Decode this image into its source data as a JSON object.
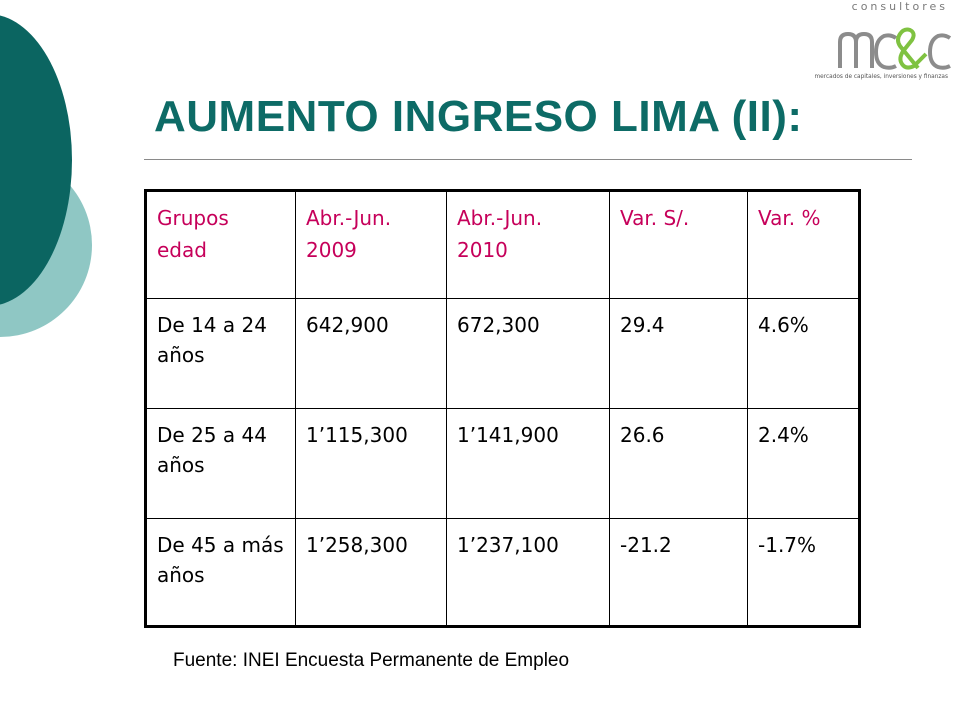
{
  "logo": {
    "top_text": "consultores",
    "sub_text": "mercados de capitales, inversiones y finanzas",
    "colors": {
      "gray": "#8c8c8c",
      "green": "#7fc241"
    }
  },
  "title": "AUMENTO INGRESO LIMA (II):",
  "table": {
    "headers": [
      {
        "line1": "Grupos",
        "line2": "edad"
      },
      {
        "line1": "Abr.-Jun.",
        "line2": "2009"
      },
      {
        "line1": "Abr.-Jun.",
        "line2": "2010"
      },
      {
        "line1": "Var. S/.",
        "line2": ""
      },
      {
        "line1": "Var. %",
        "line2": ""
      }
    ],
    "rows": [
      [
        "De 14 a 24 años",
        "642,900",
        "672,300",
        "29.4",
        "4.6%"
      ],
      [
        "De 25 a 44 años",
        "1’115,300",
        "1’141,900",
        "26.6",
        "2.4%"
      ],
      [
        "De 45 a más años",
        "1’258,300",
        "1’237,100",
        "-21.2",
        "-1.7%"
      ]
    ]
  },
  "source": "Fuente: INEI Encuesta Permanente de Empleo",
  "colors": {
    "title": "#0d6b66",
    "header_text": "#c6005a",
    "deco_dark": "#0b6561",
    "deco_light": "#8fc7c4"
  }
}
